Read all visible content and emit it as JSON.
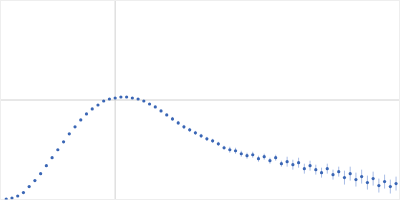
{
  "chart_data": {
    "type": "scatter",
    "color": "#3a66b5",
    "marker": "circle",
    "xlim": [
      0,
      3.48
    ],
    "ylim": [
      0,
      2
    ],
    "xticks": [
      1
    ],
    "yticks": [
      1
    ],
    "grid": true,
    "tick_labels": false,
    "x": [
      0.05,
      0.1,
      0.15,
      0.2,
      0.25,
      0.3,
      0.35,
      0.4,
      0.45,
      0.5,
      0.55,
      0.6,
      0.65,
      0.7,
      0.75,
      0.8,
      0.85,
      0.9,
      0.95,
      1.0,
      1.05,
      1.1,
      1.15,
      1.2,
      1.25,
      1.3,
      1.35,
      1.4,
      1.45,
      1.5,
      1.55,
      1.6,
      1.65,
      1.7,
      1.75,
      1.8,
      1.85,
      1.9,
      1.95,
      2.0,
      2.05,
      2.1,
      2.15,
      2.2,
      2.25,
      2.3,
      2.35,
      2.4,
      2.45,
      2.5,
      2.55,
      2.6,
      2.65,
      2.7,
      2.75,
      2.8,
      2.85,
      2.9,
      2.95,
      3.0,
      3.05,
      3.1,
      3.15,
      3.2,
      3.25,
      3.3,
      3.35,
      3.4,
      3.45
    ],
    "values": [
      0.005,
      0.015,
      0.035,
      0.07,
      0.13,
      0.19,
      0.26,
      0.34,
      0.42,
      0.5,
      0.58,
      0.66,
      0.73,
      0.8,
      0.86,
      0.91,
      0.95,
      0.99,
      1.01,
      1.02,
      1.03,
      1.03,
      1.02,
      1.01,
      0.99,
      0.96,
      0.93,
      0.89,
      0.85,
      0.81,
      0.77,
      0.73,
      0.7,
      0.67,
      0.64,
      0.61,
      0.59,
      0.56,
      0.52,
      0.5,
      0.49,
      0.46,
      0.44,
      0.45,
      0.41,
      0.43,
      0.39,
      0.42,
      0.36,
      0.38,
      0.35,
      0.37,
      0.31,
      0.34,
      0.3,
      0.27,
      0.31,
      0.25,
      0.28,
      0.22,
      0.26,
      0.2,
      0.23,
      0.17,
      0.21,
      0.14,
      0.18,
      0.13,
      0.16
    ],
    "errors": [
      0.005,
      0.005,
      0.005,
      0.005,
      0.005,
      0.005,
      0.005,
      0.005,
      0.005,
      0.005,
      0.005,
      0.005,
      0.005,
      0.005,
      0.005,
      0.005,
      0.005,
      0.005,
      0.005,
      0.01,
      0.01,
      0.01,
      0.01,
      0.01,
      0.01,
      0.01,
      0.01,
      0.01,
      0.01,
      0.02,
      0.02,
      0.02,
      0.02,
      0.02,
      0.02,
      0.02,
      0.02,
      0.02,
      0.02,
      0.03,
      0.03,
      0.03,
      0.03,
      0.03,
      0.03,
      0.03,
      0.03,
      0.03,
      0.03,
      0.05,
      0.05,
      0.05,
      0.05,
      0.05,
      0.05,
      0.05,
      0.05,
      0.05,
      0.05,
      0.07,
      0.07,
      0.07,
      0.07,
      0.07,
      0.07,
      0.07,
      0.07,
      0.07,
      0.07
    ]
  }
}
